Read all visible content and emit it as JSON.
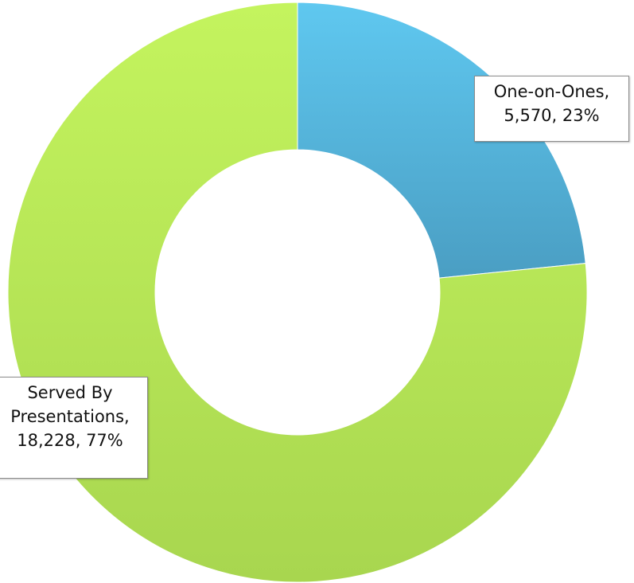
{
  "chart_data": {
    "type": "pie",
    "variant": "doughnut",
    "title": "",
    "series": [
      {
        "categories": [
          "One-on-Ones",
          "Served By Presentations"
        ],
        "values": [
          5570,
          18228
        ],
        "percents": [
          23,
          77
        ]
      }
    ],
    "colors": [
      "#5bbde0",
      "#b6e057"
    ],
    "data_labels": {
      "one_on_ones": [
        "One-on-Ones,",
        "5,570, 23%"
      ],
      "served_by_presentations": [
        "Served By",
        "Presentations,",
        "18,228, 77%"
      ]
    },
    "legend": "none"
  }
}
